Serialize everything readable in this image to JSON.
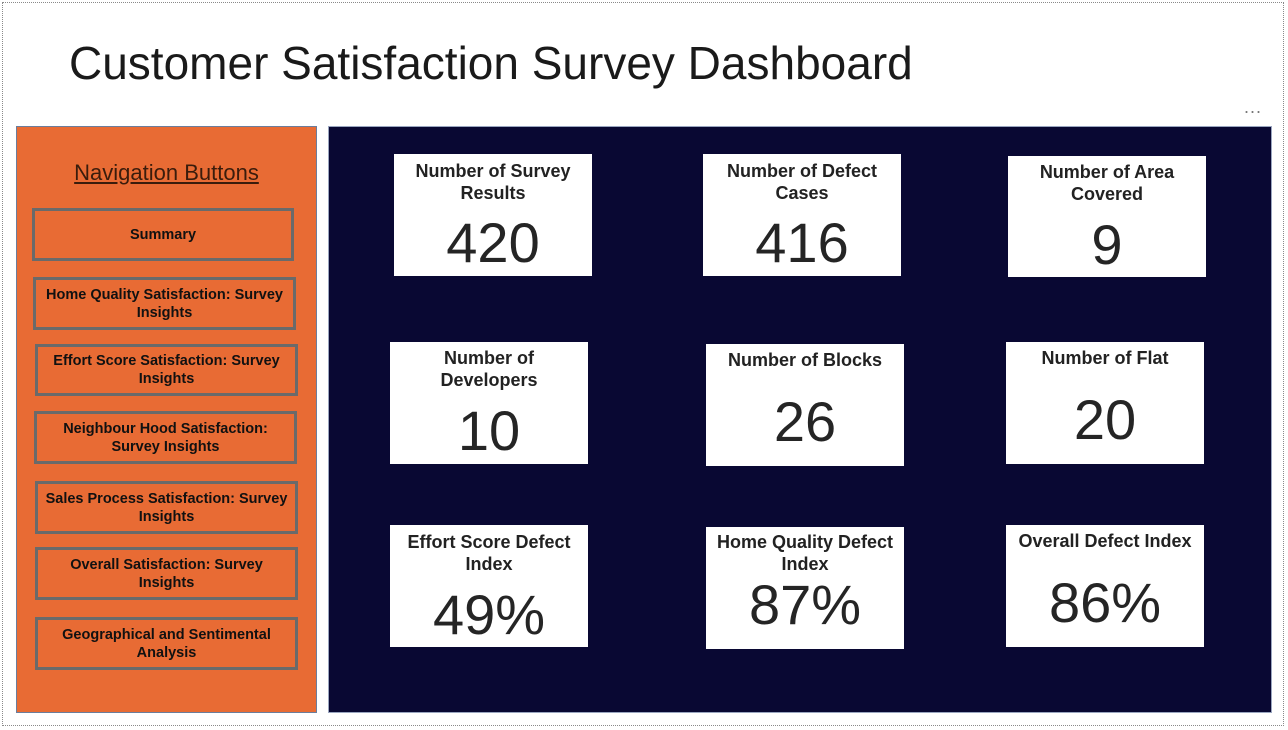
{
  "page": {
    "title": "Customer Satisfaction Survey Dashboard",
    "more_label": "..."
  },
  "navigation": {
    "heading": "Navigation Buttons",
    "buttons": [
      "Summary",
      "Home Quality Satisfaction: Survey Insights",
      "Effort Score Satisfaction: Survey Insights",
      "Neighbour Hood Satisfaction: Survey Insights",
      "Sales Process Satisfaction: Survey Insights",
      "Overall Satisfaction: Survey Insights",
      "Geographical and Sentimental Analysis"
    ]
  },
  "cards": [
    {
      "label": "Number of Survey Results",
      "value": "420"
    },
    {
      "label": "Number of Defect Cases",
      "value": "416"
    },
    {
      "label": "Number of Area Covered",
      "value": "9"
    },
    {
      "label": "Number of Developers",
      "value": "10"
    },
    {
      "label": "Number of Blocks",
      "value": "26"
    },
    {
      "label": "Number of Flat",
      "value": "20"
    },
    {
      "label": "Effort Score Defect Index",
      "value": "49%"
    },
    {
      "label": "Home Quality Defect Index",
      "value": "87%"
    },
    {
      "label": "Overall Defect Index",
      "value": "86%"
    }
  ],
  "colors": {
    "nav_background": "#e86b34",
    "panel_background": "#090833",
    "card_background": "#ffffff"
  }
}
